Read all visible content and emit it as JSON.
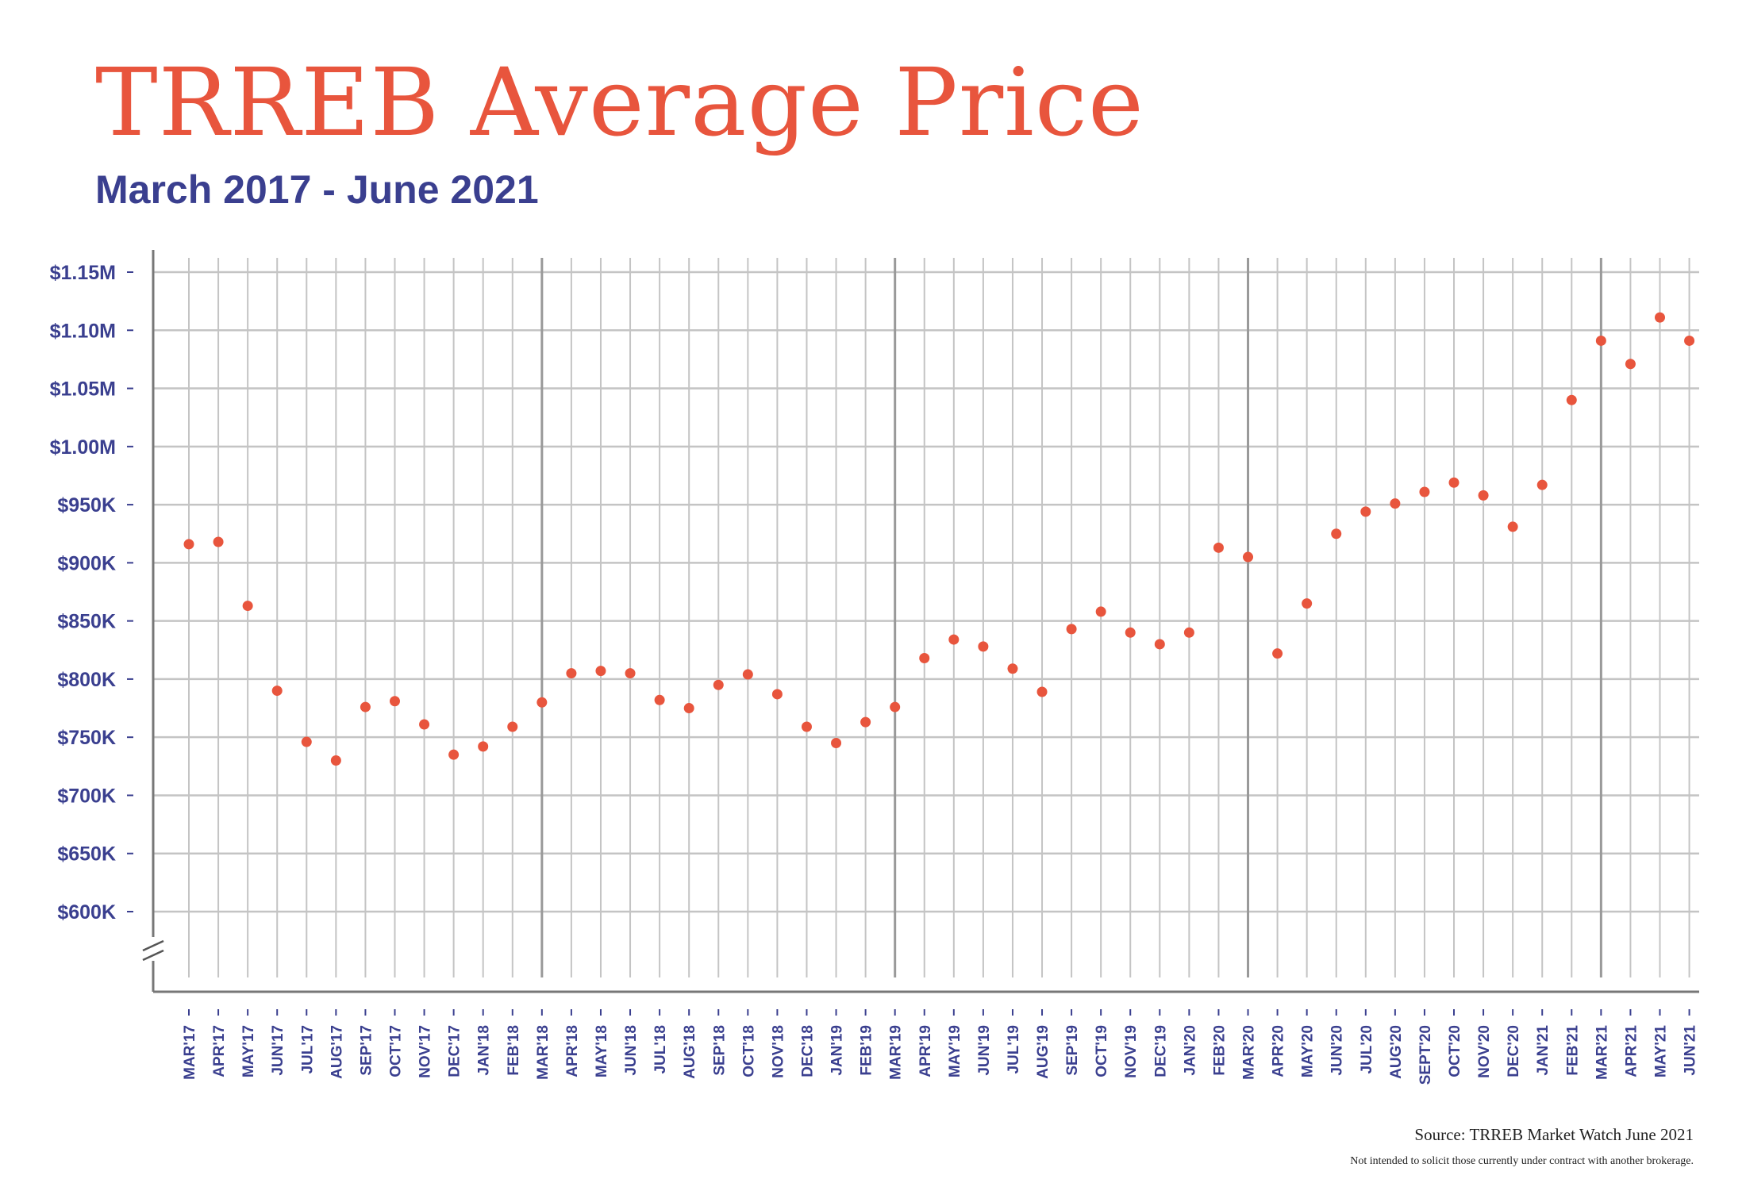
{
  "header": {
    "title": "TRREB Average Price",
    "subtitle": "March 2017 - June 2021"
  },
  "footer": {
    "source": "Source: TRREB Market Watch June 2021",
    "disclaimer": "Not intended to solicit those currently under contract with another brokerage."
  },
  "colors": {
    "title": "#e8553d",
    "subtitle": "#3a3f8f",
    "point": "#e8553d",
    "tick_label": "#3a3f8f",
    "grid": "#c4c4c4",
    "grid_major": "#999999",
    "axis": "#777777"
  },
  "chart_data": {
    "type": "scatter",
    "title": "TRREB Average Price",
    "subtitle": "March 2017 - June 2021",
    "xlabel": "",
    "ylabel": "",
    "ylim": [
      550000,
      1150000
    ],
    "y_ticks": [
      600000,
      650000,
      700000,
      750000,
      800000,
      850000,
      900000,
      950000,
      1000000,
      1050000,
      1100000,
      1150000
    ],
    "y_tick_labels": [
      "$600K",
      "$650K",
      "$700K",
      "$750K",
      "$800K",
      "$850K",
      "$900K",
      "$950K",
      "$1.00M",
      "$1.05M",
      "$1.10M",
      "$1.15M"
    ],
    "axis_break": true,
    "grid": true,
    "legend": "none",
    "categories": [
      "MAR'17",
      "APR'17",
      "MAY'17",
      "JUN'17",
      "JUL'17",
      "AUG'17",
      "SEP'17",
      "OCT'17",
      "NOV'17",
      "DEC'17",
      "JAN'18",
      "FEB'18",
      "MAR'18",
      "APR'18",
      "MAY'18",
      "JUN'18",
      "JUL'18",
      "AUG'18",
      "SEP'18",
      "OCT'18",
      "NOV'18",
      "DEC'18",
      "JAN'19",
      "FEB'19",
      "MAR'19",
      "APR'19",
      "MAY'19",
      "JUN'19",
      "JUL'19",
      "AUG'19",
      "SEP'19",
      "OCT'19",
      "NOV'19",
      "DEC'19",
      "JAN'20",
      "FEB'20",
      "MAR'20",
      "APR'20",
      "MAY'20",
      "JUN'20",
      "JUL'20",
      "AUG'20",
      "SEPT'20",
      "OCT'20",
      "NOV'20",
      "DEC'20",
      "JAN'21",
      "FEB'21",
      "MAR'21",
      "APR'21",
      "MAY'21",
      "JUN'21"
    ],
    "values": [
      916000,
      918000,
      863000,
      790000,
      746000,
      730000,
      776000,
      781000,
      761000,
      735000,
      742000,
      759000,
      780000,
      805000,
      807000,
      805000,
      782000,
      775000,
      795000,
      804000,
      787000,
      759000,
      745000,
      763000,
      776000,
      818000,
      834000,
      828000,
      809000,
      789000,
      843000,
      858000,
      840000,
      830000,
      840000,
      913000,
      905000,
      822000,
      865000,
      925000,
      944000,
      951000,
      961000,
      969000,
      958000,
      931000,
      967000,
      1040000,
      1091000,
      1071000,
      1111000,
      1091000
    ]
  }
}
